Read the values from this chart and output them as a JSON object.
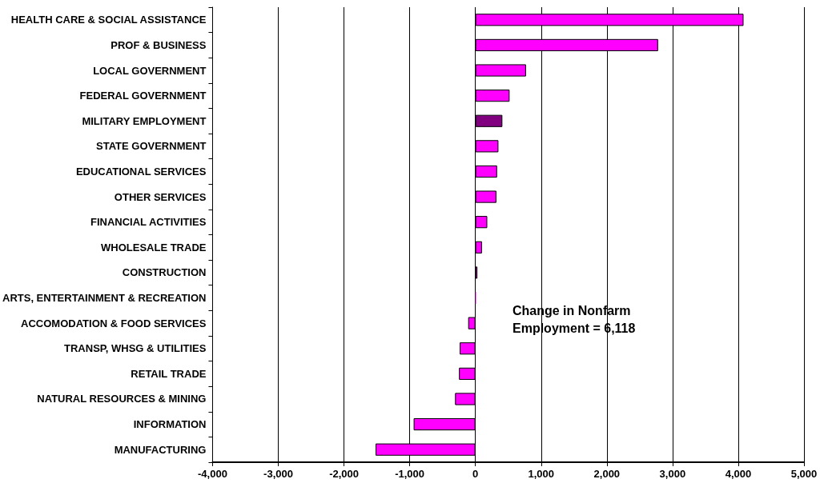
{
  "chart_data": {
    "type": "bar",
    "orientation": "horizontal",
    "categories": [
      "HEALTH CARE & SOCIAL ASSISTANCE",
      "PROF & BUSINESS",
      "LOCAL GOVERNMENT",
      "FEDERAL GOVERNMENT",
      "MILITARY EMPLOYMENT",
      "STATE GOVERNMENT",
      "EDUCATIONAL SERVICES",
      "OTHER SERVICES",
      "FINANCIAL ACTIVITIES",
      "WHOLESALE TRADE",
      "CONSTRUCTION",
      "ARTS, ENTERTAINMENT & RECREATION",
      "ACCOMODATION & FOOD SERVICES",
      "TRANSP, WHSG & UTILITIES",
      "RETAIL TRADE",
      "NATURAL RESOURCES & MINING",
      "INFORMATION",
      "MANUFACTURING"
    ],
    "values": [
      4080,
      2780,
      770,
      520,
      410,
      350,
      330,
      320,
      180,
      100,
      30,
      10,
      -110,
      -240,
      -250,
      -310,
      -940,
      -1520
    ],
    "colors": [
      "#ff00ff",
      "#ff00ff",
      "#ff00ff",
      "#ff00ff",
      "#800080",
      "#ff00ff",
      "#ff00ff",
      "#ff00ff",
      "#ff00ff",
      "#ff00ff",
      "#ff00ff",
      "#ff00ff",
      "#ff00ff",
      "#ff00ff",
      "#ff00ff",
      "#ff00ff",
      "#ff00ff",
      "#ff00ff"
    ],
    "xlim": [
      -4000,
      5000
    ],
    "xticks": [
      {
        "value": -4000,
        "label": "-4,000"
      },
      {
        "value": -3000,
        "label": "-3,000"
      },
      {
        "value": -2000,
        "label": "-2,000"
      },
      {
        "value": -1000,
        "label": "-1,000"
      },
      0,
      {
        "value": 1000,
        "label": "1,000"
      },
      {
        "value": 2000,
        "label": "2,000"
      },
      {
        "value": 3000,
        "label": "3,000"
      },
      {
        "value": 4000,
        "label": "4,000"
      },
      {
        "value": 5000,
        "label": "5,000"
      }
    ],
    "grid": "x",
    "annotations": [
      "Change in Nonfarm Employment = 6,118"
    ]
  }
}
